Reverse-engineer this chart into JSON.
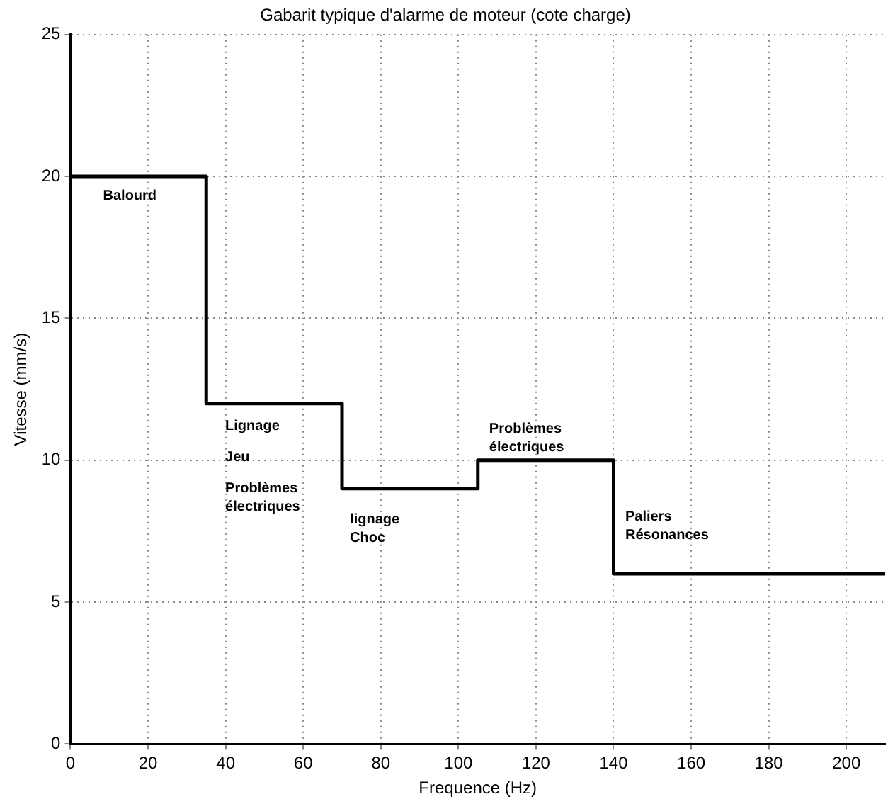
{
  "chart_data": {
    "type": "step",
    "title": "Gabarit typique d'alarme de moteur (cote charge)",
    "xlabel": "Frequence (Hz)",
    "ylabel": "Vitesse (mm/s)",
    "x": [
      0,
      35,
      70,
      105,
      140,
      210
    ],
    "values": [
      20,
      12,
      9,
      10,
      6,
      6
    ],
    "color": "#000000",
    "xlim": [
      0,
      210
    ],
    "xticks": [
      0,
      20,
      40,
      60,
      80,
      100,
      120,
      140,
      160,
      180,
      200
    ],
    "ylim": [
      0,
      25
    ],
    "yticks": [
      0,
      5,
      10,
      15,
      20,
      25
    ],
    "grid": true,
    "annotations": [
      "Balourd",
      "Lignage",
      "Jeu",
      "Problèmes\nélectriques",
      "lignage\nChoc",
      "Problèmes\nélectriques",
      "Paliers\nRésonances"
    ]
  }
}
